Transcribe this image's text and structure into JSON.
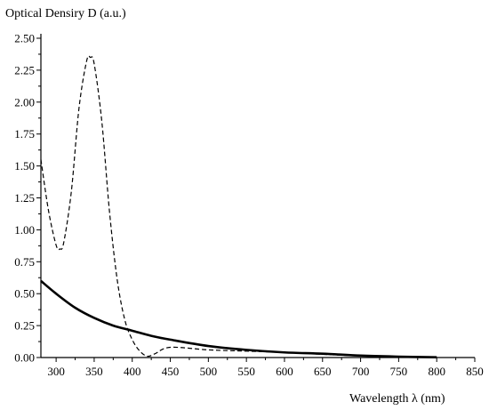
{
  "chart_data": {
    "type": "line",
    "title": "",
    "ylabel": "Optical Densiry D (a.u.)",
    "xlabel": "Wavelength λ (nm)",
    "xlim": [
      280,
      850
    ],
    "ylim": [
      0,
      2.5
    ],
    "x_ticks": [
      300,
      350,
      400,
      450,
      500,
      550,
      600,
      650,
      700,
      750,
      800,
      850
    ],
    "x_tick_labels": [
      "300",
      "350",
      "400",
      "450",
      "500",
      "550",
      "600",
      "650",
      "700",
      "750",
      "800",
      "850"
    ],
    "y_ticks": [
      0,
      0.25,
      0.5,
      0.75,
      1.0,
      1.25,
      1.5,
      1.75,
      2.0,
      2.25,
      2.5
    ],
    "y_tick_labels": [
      "0.00",
      "0.25",
      "0.50",
      "0.75",
      "1.00",
      "1.25",
      "1.50",
      "1.75",
      "2.00",
      "2.25",
      "2.50"
    ],
    "grid": false,
    "series": [
      {
        "style": "solid",
        "x": [
          280,
          300,
          325,
          350,
          375,
          400,
          425,
          450,
          500,
          550,
          600,
          650,
          700,
          750,
          800
        ],
        "y": [
          0.6,
          0.5,
          0.39,
          0.31,
          0.25,
          0.21,
          0.17,
          0.14,
          0.09,
          0.06,
          0.04,
          0.03,
          0.015,
          0.007,
          0.002
        ]
      },
      {
        "style": "dashed",
        "x": [
          280,
          290,
          300,
          305,
          310,
          320,
          330,
          340,
          345,
          350,
          360,
          370,
          380,
          390,
          400,
          410,
          420,
          430,
          450,
          500,
          550,
          600,
          650,
          700,
          750,
          800
        ],
        "y": [
          1.55,
          1.15,
          0.88,
          0.85,
          0.9,
          1.3,
          1.95,
          2.32,
          2.35,
          2.3,
          1.85,
          1.15,
          0.62,
          0.3,
          0.14,
          0.05,
          0.01,
          0.03,
          0.08,
          0.06,
          0.05,
          0.04,
          0.025,
          0.012,
          0.005,
          0.002
        ]
      }
    ]
  }
}
